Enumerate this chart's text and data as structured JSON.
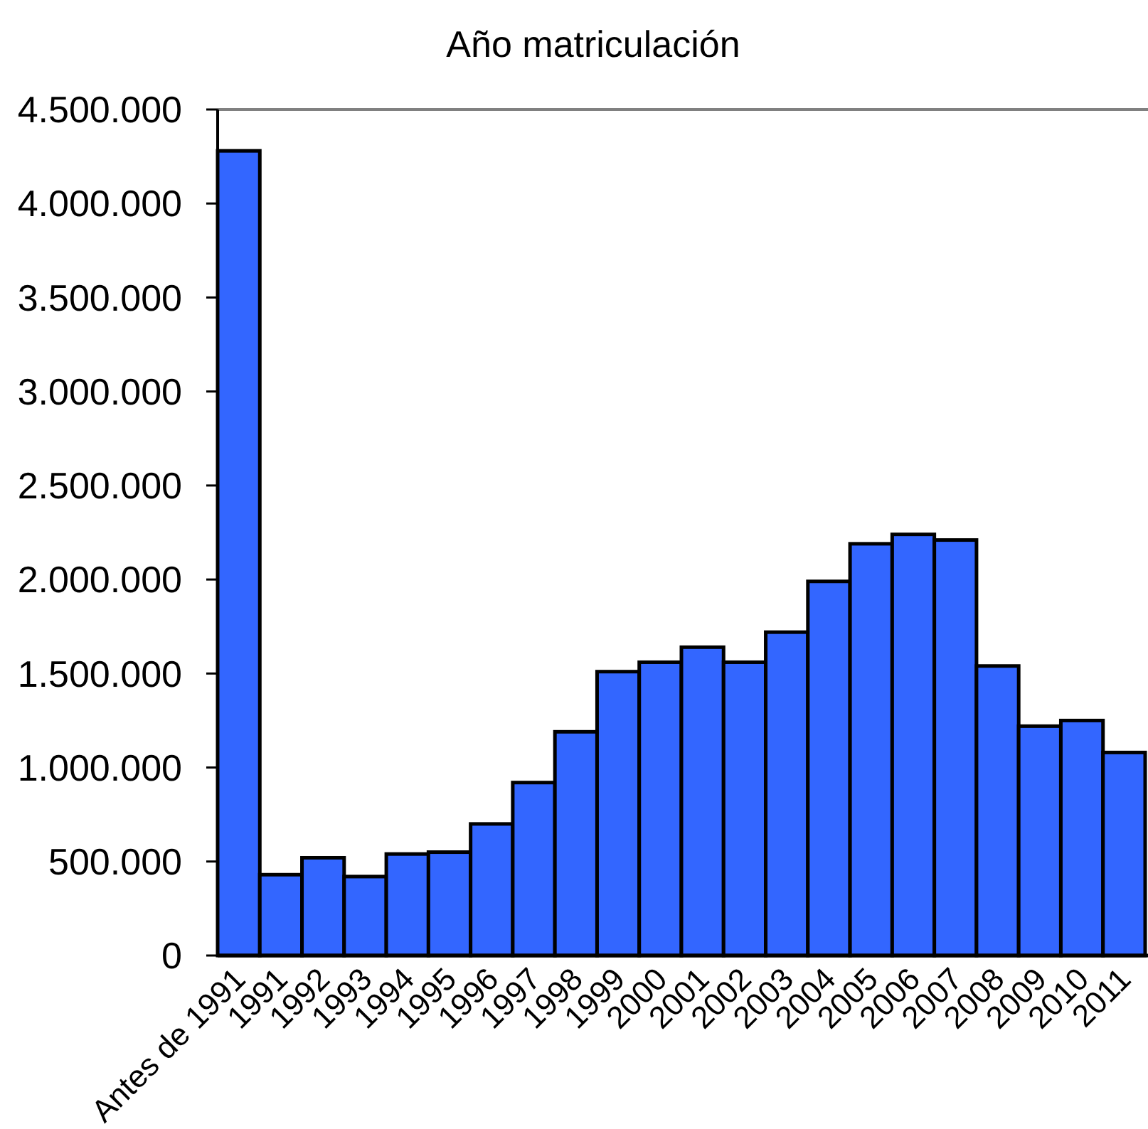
{
  "chart_data": {
    "type": "bar",
    "title": "Año matriculación",
    "categories": [
      "Antes de 1991",
      "1991",
      "1992",
      "1993",
      "1994",
      "1995",
      "1996",
      "1997",
      "1998",
      "1999",
      "2000",
      "2001",
      "2002",
      "2003",
      "2004",
      "2005",
      "2006",
      "2007",
      "2008",
      "2009",
      "2010",
      "2011"
    ],
    "values": [
      4280000,
      430000,
      520000,
      420000,
      540000,
      550000,
      700000,
      920000,
      1190000,
      1510000,
      1560000,
      1640000,
      1560000,
      1720000,
      1990000,
      2190000,
      2240000,
      2210000,
      1540000,
      1220000,
      1250000,
      1080000
    ],
    "color": "#3366ff",
    "ylim": [
      0,
      4500000
    ],
    "yticks": [
      0,
      {
        "value": 500000,
        "label": "500.000"
      },
      {
        "value": 1000000,
        "label": "1.000.000"
      },
      {
        "value": 1500000,
        "label": "1.500.000"
      },
      {
        "value": 2000000,
        "label": "2.000.000"
      },
      {
        "value": 2500000,
        "label": "2.500.000"
      },
      {
        "value": 3000000,
        "label": "3.000.000"
      },
      {
        "value": 3500000,
        "label": "3.500.000"
      },
      {
        "value": 4000000,
        "label": "4.000.000"
      },
      {
        "value": 4500000,
        "label": "4.500.000"
      }
    ]
  }
}
